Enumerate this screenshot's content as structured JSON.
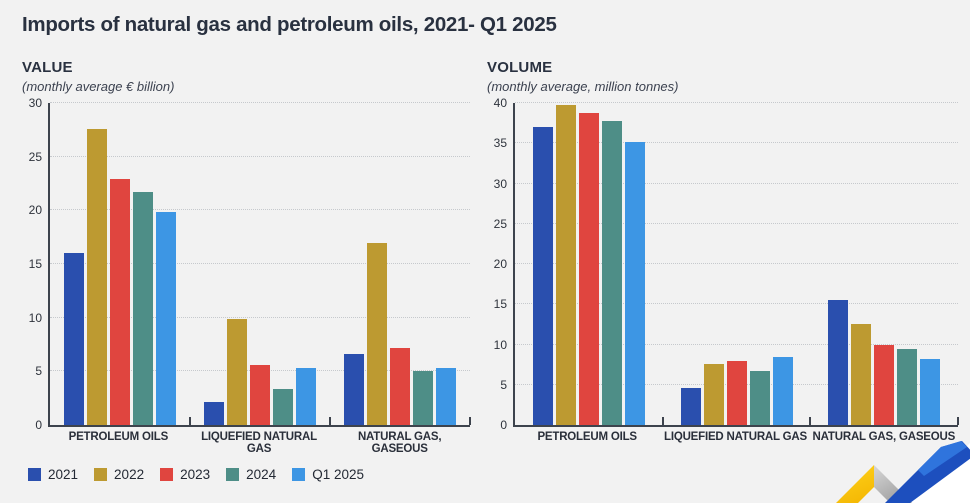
{
  "page": {
    "title": "Imports of natural gas and petroleum oils, 2021- Q1 2025",
    "background": "#f2f2f2"
  },
  "chart_data": [
    {
      "type": "bar",
      "title": "VALUE",
      "subtitle": "(monthly average € billion)",
      "categories": [
        "PETROLEUM OILS",
        "LIQUEFIED NATURAL GAS",
        "NATURAL GAS, GASEOUS"
      ],
      "series": [
        {
          "name": "2021",
          "color": "#2a4fae",
          "values": [
            16.0,
            2.1,
            6.6
          ]
        },
        {
          "name": "2022",
          "color": "#bd9a31",
          "values": [
            27.6,
            9.9,
            17.0
          ]
        },
        {
          "name": "2023",
          "color": "#e0453f",
          "values": [
            22.9,
            5.6,
            7.2
          ]
        },
        {
          "name": "2024",
          "color": "#4e8e87",
          "values": [
            21.7,
            3.4,
            5.0
          ]
        },
        {
          "name": "Q1 2025",
          "color": "#3d96e4",
          "values": [
            19.8,
            5.3,
            5.3
          ]
        }
      ],
      "ylim": [
        0,
        30
      ],
      "ytick_step": 5,
      "grid": "dotted-horizontal",
      "legend_position": "bottom-left"
    },
    {
      "type": "bar",
      "title": "VOLUME",
      "subtitle": "(monthly average, million tonnes)",
      "categories": [
        "PETROLEUM OILS",
        "LIQUEFIED NATURAL GAS",
        "NATURAL GAS, GASEOUS"
      ],
      "series": [
        {
          "name": "2021",
          "color": "#2a4fae",
          "values": [
            37.0,
            4.6,
            15.5
          ]
        },
        {
          "name": "2022",
          "color": "#bd9a31",
          "values": [
            39.8,
            7.6,
            12.6
          ]
        },
        {
          "name": "2023",
          "color": "#e0453f",
          "values": [
            38.7,
            7.9,
            9.9
          ]
        },
        {
          "name": "2024",
          "color": "#4e8e87",
          "values": [
            37.8,
            6.7,
            9.4
          ]
        },
        {
          "name": "Q1 2025",
          "color": "#3d96e4",
          "values": [
            35.1,
            8.4,
            8.2
          ]
        }
      ],
      "ylim": [
        0,
        40
      ],
      "ytick_step": 5,
      "grid": "dotted-horizontal",
      "legend_position": "bottom-left"
    }
  ],
  "decoration": {
    "name": "corner-arrow",
    "colors": {
      "yellow": "#fcc50a",
      "gray_light": "#d8d8d8",
      "gray_dark": "#9f9f9f",
      "blue": "#1d4fbe",
      "blue_light": "#2f74dd",
      "white": "#ffffff"
    }
  }
}
